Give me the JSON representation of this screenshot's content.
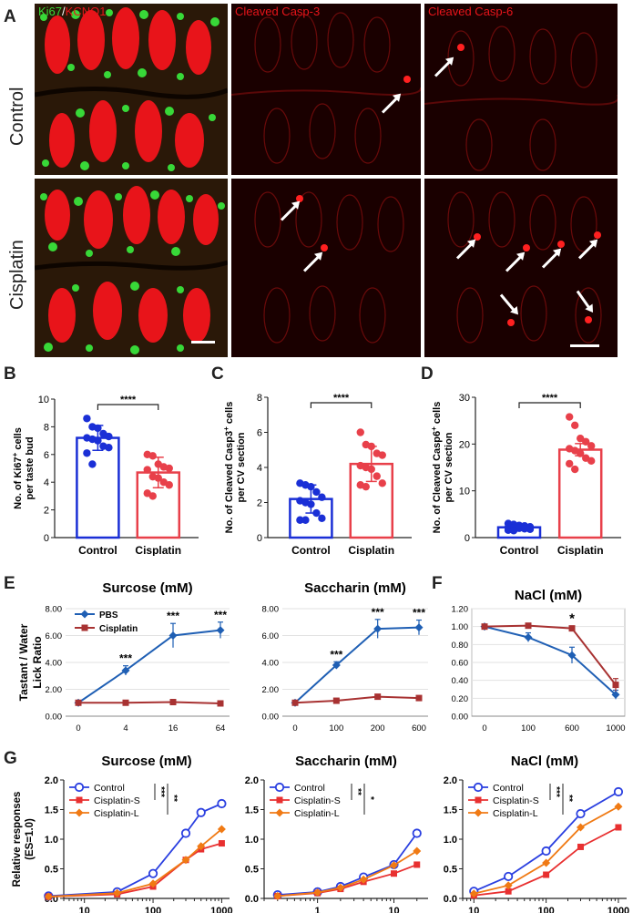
{
  "panels": {
    "A": "A",
    "B": "B",
    "C": "C",
    "D": "D",
    "E": "E",
    "F": "F",
    "G": "G"
  },
  "panelA": {
    "col1_label_green": "Ki67",
    "col1_label_sep": "/",
    "col1_label_red": "KCNQ1",
    "col2_label": "Cleaved Casp-3",
    "col3_label": "Cleaved Casp-6",
    "row1_label": "Control",
    "row2_label": "Cisplatin",
    "colors": {
      "green": "#38d838",
      "red": "#e8141a",
      "bg": "#1a0000"
    }
  },
  "chart_data": [
    {
      "panel": "B",
      "type": "bar",
      "categories": [
        "Control",
        "Cisplatin"
      ],
      "values": [
        7.2,
        4.7
      ],
      "errors": [
        0.9,
        1.1
      ],
      "points": [
        [
          8.6,
          8.0,
          7.9,
          7.5,
          7.3,
          7.2,
          7.1,
          7.0,
          6.6,
          6.5,
          6.1,
          5.3
        ],
        [
          6.0,
          5.9,
          5.3,
          5.1,
          5.0,
          4.9,
          4.4,
          4.3,
          4.0,
          3.8,
          3.2,
          3.0
        ]
      ],
      "ylabel_line1": "No. of Ki67",
      "ylabel_sup": "+",
      "ylabel_line1b": " cells",
      "ylabel_line2": "per taste bud",
      "ylim": [
        0,
        10
      ],
      "yticks": [
        "0",
        "2",
        "4",
        "6",
        "8",
        "10"
      ],
      "significance": "****",
      "colors": [
        "#1a2fd6",
        "#e8404a"
      ]
    },
    {
      "panel": "C",
      "type": "bar",
      "categories": [
        "Control",
        "Cisplatin"
      ],
      "values": [
        2.2,
        4.2
      ],
      "errors": [
        0.8,
        1.0
      ],
      "points": [
        [
          3.1,
          3.0,
          2.9,
          2.6,
          2.3,
          2.1,
          2.0,
          1.9,
          1.4,
          1.1,
          1.0,
          1.0
        ],
        [
          6.0,
          5.3,
          5.2,
          4.8,
          4.7,
          4.1,
          4.0,
          3.9,
          3.5,
          3.1,
          3.0,
          2.9
        ]
      ],
      "ylabel_line1": "No. of Cleaved Casp3",
      "ylabel_sup": "+",
      "ylabel_line1b": " cells",
      "ylabel_line2": "per CV section",
      "ylim": [
        0,
        8
      ],
      "yticks": [
        "0",
        "2",
        "4",
        "6",
        "8"
      ],
      "significance": "****",
      "colors": [
        "#1a2fd6",
        "#e8404a"
      ]
    },
    {
      "panel": "D",
      "type": "bar",
      "categories": [
        "Control",
        "Cisplatin"
      ],
      "values": [
        2.2,
        18.8
      ],
      "errors": [
        0.5,
        1.3
      ],
      "points": [
        [
          3.0,
          2.8,
          2.6,
          2.5,
          2.3,
          2.2,
          2.1,
          2.0,
          1.9,
          1.8,
          1.6,
          1.5
        ],
        [
          25.8,
          24.0,
          21.2,
          20.5,
          19.6,
          19.0,
          18.6,
          18.0,
          17.0,
          16.4,
          15.8,
          14.6
        ]
      ],
      "ylabel_line1": "No. of Cleaved Casp6",
      "ylabel_sup": "+",
      "ylabel_line1b": " cells",
      "ylabel_line2": "per CV section",
      "ylim": [
        0,
        30
      ],
      "yticks": [
        "0",
        "10",
        "20",
        "30"
      ],
      "significance": "****",
      "colors": [
        "#1a2fd6",
        "#e8404a"
      ]
    },
    {
      "panel": "E1",
      "type": "line",
      "title": "Surcose (mM)",
      "categories": [
        "0",
        "4",
        "16",
        "64"
      ],
      "series": [
        {
          "name": "PBS",
          "values": [
            1.0,
            3.4,
            6.0,
            6.4
          ],
          "errors": [
            0.1,
            0.35,
            0.9,
            0.6
          ],
          "color": "#1f5fb4",
          "marker": "diamond"
        },
        {
          "name": "Cisplatin",
          "values": [
            1.0,
            1.0,
            1.05,
            0.95
          ],
          "errors": [
            0.05,
            0.05,
            0.1,
            0.05
          ],
          "color": "#a83232",
          "marker": "square"
        }
      ],
      "sig": [
        "",
        "***",
        "***",
        "***"
      ],
      "ylabel_line1": "Tastant / Water",
      "ylabel_line2": "Lick Ratio",
      "ylim": [
        0,
        8
      ],
      "yticks": [
        "0.00",
        "2.00",
        "4.00",
        "6.00",
        "8.00"
      ]
    },
    {
      "panel": "E2",
      "type": "line",
      "title": "Saccharin (mM)",
      "categories": [
        "0",
        "100",
        "200",
        "600"
      ],
      "series": [
        {
          "name": "PBS",
          "values": [
            1.0,
            3.8,
            6.5,
            6.6
          ],
          "errors": [
            0.05,
            0.25,
            0.7,
            0.55
          ],
          "color": "#1f5fb4",
          "marker": "diamond"
        },
        {
          "name": "Cisplatin",
          "values": [
            1.0,
            1.15,
            1.45,
            1.35
          ],
          "errors": [
            0.05,
            0.05,
            0.1,
            0.05
          ],
          "color": "#a83232",
          "marker": "square"
        }
      ],
      "sig": [
        "",
        "***",
        "***",
        "***"
      ],
      "ylim": [
        0,
        8
      ],
      "yticks": [
        "0.00",
        "2.00",
        "4.00",
        "6.00",
        "8.00"
      ]
    },
    {
      "panel": "F",
      "type": "line",
      "title": "NaCl (mM)",
      "categories": [
        "0",
        "100",
        "600",
        "1000"
      ],
      "series": [
        {
          "name": "PBS",
          "values": [
            1.0,
            0.88,
            0.68,
            0.24
          ],
          "errors": [
            0.01,
            0.05,
            0.09,
            0.05
          ],
          "color": "#1f5fb4",
          "marker": "diamond"
        },
        {
          "name": "Cisplatin",
          "values": [
            1.0,
            1.01,
            0.98,
            0.35
          ],
          "errors": [
            0.01,
            0.02,
            0.02,
            0.07
          ],
          "color": "#a83232",
          "marker": "square"
        }
      ],
      "sig": [
        "",
        "",
        "*",
        ""
      ],
      "ylim": [
        0,
        1.2
      ],
      "yticks": [
        "0.00",
        "0.20",
        "0.40",
        "0.60",
        "0.80",
        "1.00",
        "1.20"
      ]
    },
    {
      "panel": "G1",
      "type": "line",
      "title": "Surcose (mM)",
      "xscale": "log",
      "x": [
        3,
        30,
        100,
        300,
        500,
        1000
      ],
      "xrange": [
        5,
        1300
      ],
      "xticks": [
        "10",
        "100",
        "1000"
      ],
      "xtick_values": [
        10,
        100,
        1000
      ],
      "series": [
        {
          "name": "Control",
          "values": [
            0.04,
            0.11,
            0.42,
            1.1,
            1.45,
            1.6
          ],
          "color": "#2a3fe0",
          "marker": "circle"
        },
        {
          "name": "Cisplatin-S",
          "values": [
            0.03,
            0.07,
            0.2,
            0.65,
            0.83,
            0.93
          ],
          "color": "#e83030",
          "marker": "square"
        },
        {
          "name": "Cisplatin-L",
          "values": [
            0.03,
            0.09,
            0.25,
            0.65,
            0.88,
            1.17
          ],
          "color": "#f07a14",
          "marker": "diamond"
        }
      ],
      "sig_outer": "**",
      "sig_inner": "***",
      "ylabel_line1": "Relative responses",
      "ylabel_line2": "(ES=1.0)",
      "ylim": [
        0,
        2.0
      ],
      "yticks": [
        "0.0",
        "0.5",
        "1.0",
        "1.5",
        "2.0"
      ]
    },
    {
      "panel": "G2",
      "type": "line",
      "title": "Saccharin (mM)",
      "xscale": "log",
      "x": [
        0.3,
        1,
        2,
        4,
        10,
        20
      ],
      "xrange": [
        0.2,
        28
      ],
      "xticks": [
        "1",
        "10"
      ],
      "xtick_values": [
        1,
        10
      ],
      "series": [
        {
          "name": "Control",
          "values": [
            0.06,
            0.11,
            0.2,
            0.36,
            0.57,
            1.1
          ],
          "color": "#2a3fe0",
          "marker": "circle"
        },
        {
          "name": "Cisplatin-S",
          "values": [
            0.04,
            0.09,
            0.16,
            0.28,
            0.42,
            0.57
          ],
          "color": "#e83030",
          "marker": "square"
        },
        {
          "name": "Cisplatin-L",
          "values": [
            0.04,
            0.1,
            0.18,
            0.32,
            0.56,
            0.8
          ],
          "color": "#f07a14",
          "marker": "diamond"
        }
      ],
      "sig_outer": "*",
      "sig_inner": "**",
      "ylim": [
        0,
        2.0
      ],
      "yticks": [
        "0.0",
        "0.5",
        "1.0",
        "1.5",
        "2.0"
      ]
    },
    {
      "panel": "G3",
      "type": "line",
      "title": "NaCl (mM)",
      "xscale": "log",
      "x": [
        10,
        30,
        100,
        300,
        1000
      ],
      "xrange": [
        7,
        1300
      ],
      "xticks": [
        "10",
        "100",
        "1000"
      ],
      "xtick_values": [
        10,
        100,
        1000
      ],
      "series": [
        {
          "name": "Control",
          "values": [
            0.12,
            0.37,
            0.8,
            1.43,
            1.8
          ],
          "color": "#2a3fe0",
          "marker": "circle"
        },
        {
          "name": "Cisplatin-S",
          "values": [
            0.05,
            0.12,
            0.4,
            0.87,
            1.2
          ],
          "color": "#e83030",
          "marker": "square"
        },
        {
          "name": "Cisplatin-L",
          "values": [
            0.08,
            0.22,
            0.6,
            1.2,
            1.55
          ],
          "color": "#f07a14",
          "marker": "diamond"
        }
      ],
      "sig_outer": "**",
      "sig_inner": "***",
      "ylim": [
        0,
        2.0
      ],
      "yticks": [
        "0.0",
        "0.5",
        "1.0",
        "1.5",
        "2.0"
      ]
    }
  ]
}
